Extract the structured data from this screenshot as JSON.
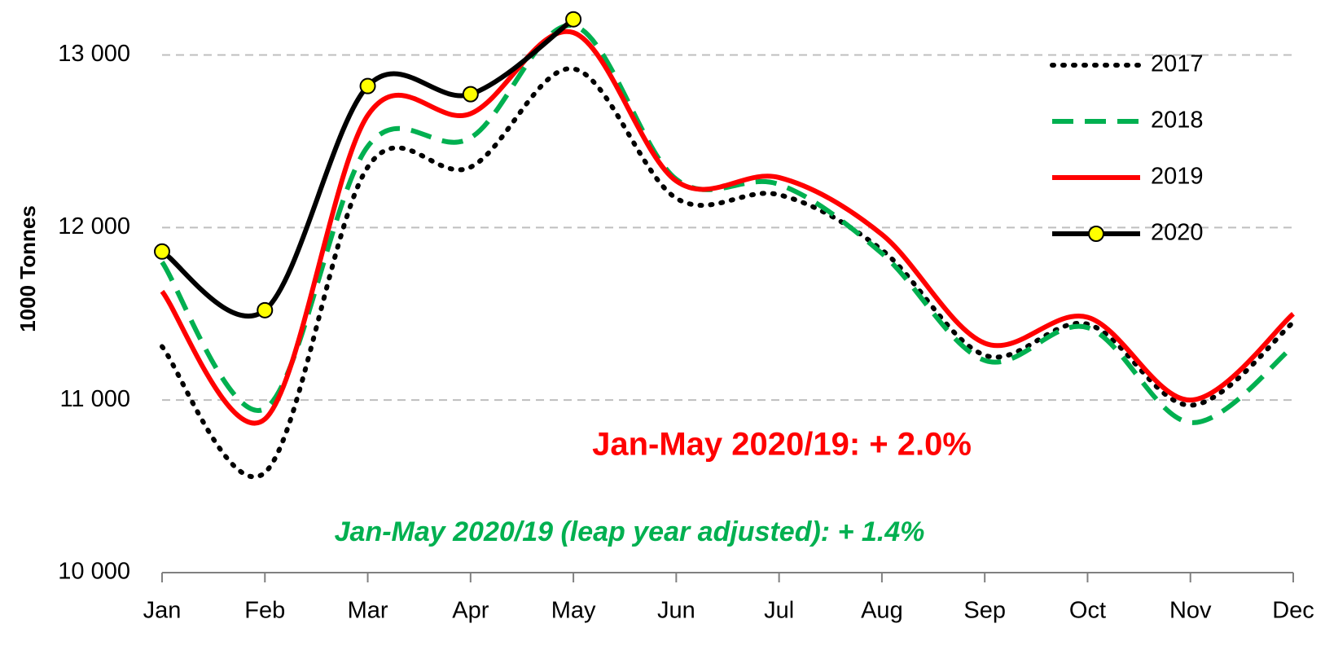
{
  "chart_data": {
    "type": "line",
    "y_label": "1000 Tonnes",
    "categories": [
      "Jan",
      "Feb",
      "Mar",
      "Apr",
      "May",
      "Jun",
      "Jul",
      "Aug",
      "Sep",
      "Oct",
      "Nov",
      "Dec"
    ],
    "series": [
      {
        "name": "2017",
        "color": "#000000",
        "dash": "dotted",
        "values": [
          11310,
          10580,
          12350,
          12350,
          12920,
          12170,
          12190,
          11870,
          11260,
          11440,
          10970,
          11450
        ]
      },
      {
        "name": "2018",
        "color": "#00b050",
        "dash": "dashed",
        "values": [
          11800,
          10950,
          12470,
          12520,
          13170,
          12280,
          12250,
          11850,
          11230,
          11420,
          10870,
          11310
        ]
      },
      {
        "name": "2019",
        "color": "#ff0000",
        "dash": "solid",
        "values": [
          11630,
          10890,
          12650,
          12660,
          13130,
          12270,
          12290,
          11960,
          11330,
          11480,
          11000,
          11500
        ]
      },
      {
        "name": "2020",
        "color": "#000000",
        "dash": "solid",
        "marker": "#ffff00",
        "values": [
          11861,
          11521,
          12820,
          12773,
          13207,
          null,
          null,
          null,
          null,
          null,
          null,
          null
        ]
      }
    ],
    "ylim": [
      10000,
      13300
    ],
    "yticks": [
      {
        "value": 10000,
        "label": "10 000"
      },
      {
        "value": 11000,
        "label": "11 000"
      },
      {
        "value": 12000,
        "label": "12 000"
      },
      {
        "value": 13000,
        "label": "13 000"
      }
    ],
    "grid": true,
    "legend": "top-right",
    "annotations": [
      {
        "text": "Jan-May 2020/19: + 2.0%",
        "color": "#ff0000",
        "style": "normal"
      },
      {
        "text": "Jan-May 2020/19 (leap year adjusted): + 1.4%",
        "color": "#00b050",
        "style": "italic"
      }
    ]
  }
}
